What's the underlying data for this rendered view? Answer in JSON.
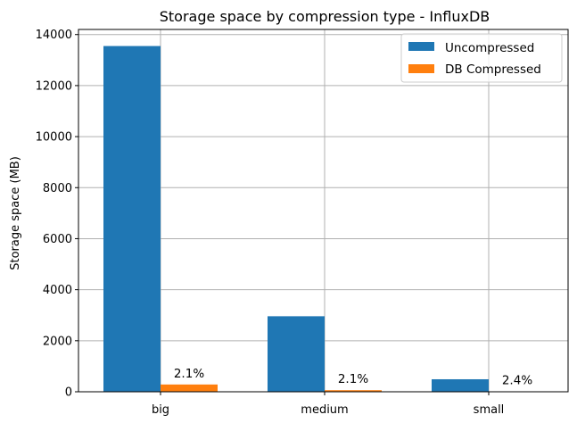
{
  "chart_data": {
    "type": "bar",
    "title": "Storage space by compression type - InfluxDB",
    "xlabel": "",
    "ylabel": "Storage space (MB)",
    "categories": [
      "big",
      "medium",
      "small"
    ],
    "series": [
      {
        "name": "Uncompressed",
        "values": [
          13550,
          2960,
          490
        ],
        "color": "#1f77b4"
      },
      {
        "name": "DB Compressed",
        "values": [
          285,
          62,
          12
        ],
        "color": "#ff7f0e"
      }
    ],
    "bar_labels": [
      "2.1%",
      "2.1%",
      "2.4%"
    ],
    "ylim": [
      0,
      14200
    ],
    "yticks": [
      0,
      2000,
      4000,
      6000,
      8000,
      10000,
      12000,
      14000
    ],
    "yticklabels": [
      "0",
      "2000",
      "4000",
      "6000",
      "8000",
      "10000",
      "12000",
      "14000"
    ],
    "grid": true,
    "legend_position": "top-right"
  }
}
